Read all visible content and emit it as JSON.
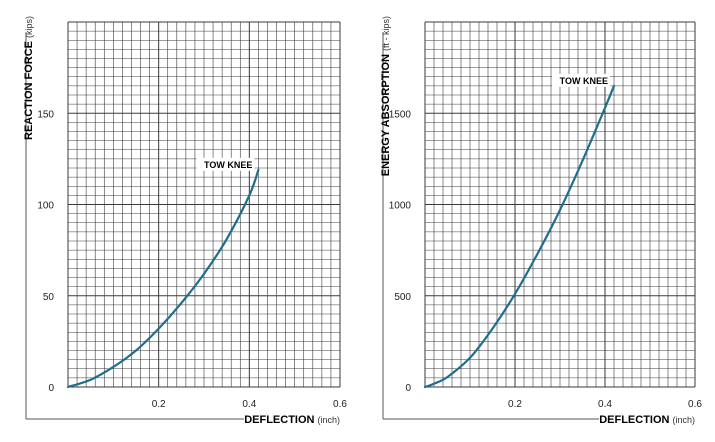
{
  "chart_data": [
    {
      "type": "line",
      "xlabel": "DEFLECTION",
      "xlabel_unit": "(inch)",
      "ylabel": "REACTION FORCE",
      "ylabel_unit": "(kips)",
      "xlim": [
        0,
        0.6
      ],
      "ylim": [
        0,
        200
      ],
      "xticks": [
        "0.2",
        "0.4",
        "0.6"
      ],
      "yticks": [
        "0",
        "50",
        "100",
        "150"
      ],
      "grid": true,
      "line_color": "#1e6e8e",
      "series": [
        {
          "x": [
            0,
            0.05,
            0.1,
            0.15,
            0.2,
            0.25,
            0.3,
            0.35,
            0.4,
            0.42
          ],
          "y": [
            0,
            4,
            11,
            20,
            32,
            46,
            62,
            81,
            105,
            119
          ]
        }
      ],
      "annotations": [
        {
          "text": "TOW KNEE",
          "x": 0.42,
          "y": 119
        }
      ]
    },
    {
      "type": "line",
      "xlabel": "DEFLECTION",
      "xlabel_unit": "(inch)",
      "ylabel": "ENERGY ABSORPTION",
      "ylabel_unit": "(ft - kips)",
      "xlim": [
        0,
        0.6
      ],
      "ylim": [
        0,
        2000
      ],
      "xticks": [
        "0.2",
        "0.4",
        "0.6"
      ],
      "yticks": [
        "0",
        "500",
        "1000",
        "1500"
      ],
      "grid": true,
      "line_color": "#1e6e8e",
      "series": [
        {
          "x": [
            0,
            0.02,
            0.05,
            0.1,
            0.15,
            0.2,
            0.25,
            0.3,
            0.35,
            0.4,
            0.42
          ],
          "y": [
            0,
            18,
            55,
            160,
            320,
            510,
            730,
            970,
            1240,
            1530,
            1650
          ]
        }
      ],
      "annotations": [
        {
          "text": "TOW KNEE",
          "x": 0.42,
          "y": 1650
        }
      ]
    }
  ]
}
